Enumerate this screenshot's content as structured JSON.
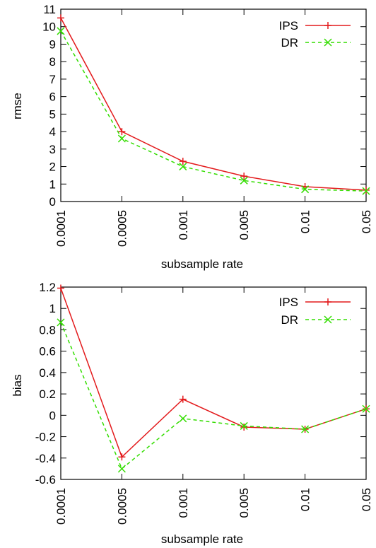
{
  "chart_data": [
    {
      "type": "line",
      "categories": [
        "0.0001",
        "0.0005",
        "0.001",
        "0.005",
        "0.01",
        "0.05"
      ],
      "xlabel": "subsample rate",
      "ylabel": "rmse",
      "ylim": [
        0,
        11
      ],
      "yticks": [
        "0",
        "1",
        "2",
        "3",
        "4",
        "5",
        "6",
        "7",
        "8",
        "9",
        "10",
        "11"
      ],
      "grid": false,
      "legend_position": "top-right",
      "series": [
        {
          "name": "IPS",
          "color": "#e31a1c",
          "dash": "solid",
          "marker": "plus",
          "values": [
            10.5,
            4.0,
            2.3,
            1.45,
            0.85,
            0.65
          ]
        },
        {
          "name": "DR",
          "color": "#33dd00",
          "dash": "dashed",
          "marker": "cross",
          "values": [
            9.75,
            3.6,
            2.0,
            1.2,
            0.7,
            0.6
          ]
        }
      ]
    },
    {
      "type": "line",
      "categories": [
        "0.0001",
        "0.0005",
        "0.001",
        "0.005",
        "0.01",
        "0.05"
      ],
      "xlabel": "subsample rate",
      "ylabel": "bias",
      "ylim": [
        -0.6,
        1.2
      ],
      "yticks": [
        "-0.6",
        "-0.4",
        "-0.2",
        "0",
        "0.2",
        "0.4",
        "0.6",
        "0.8",
        "1",
        "1.2"
      ],
      "grid": false,
      "legend_position": "top-right",
      "series": [
        {
          "name": "IPS",
          "color": "#e31a1c",
          "dash": "solid",
          "marker": "plus",
          "values": [
            1.19,
            -0.39,
            0.15,
            -0.11,
            -0.13,
            0.06
          ]
        },
        {
          "name": "DR",
          "color": "#33dd00",
          "dash": "dashed",
          "marker": "cross",
          "values": [
            0.87,
            -0.5,
            -0.03,
            -0.1,
            -0.13,
            0.06
          ]
        }
      ]
    }
  ]
}
